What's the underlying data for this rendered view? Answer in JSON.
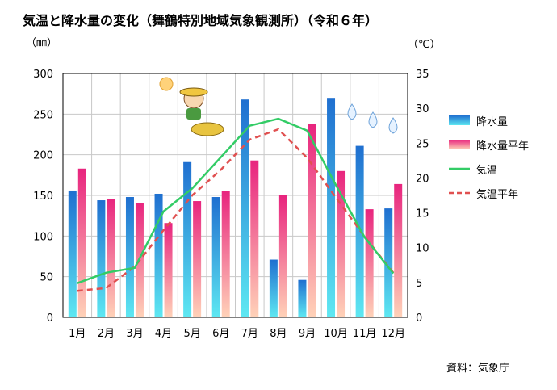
{
  "title": "気温と降水量の変化（舞鶴特別地域気象観測所）（令和６年）",
  "unit_left": "（㎜）",
  "unit_right": "（℃）",
  "source": "資料：気象庁",
  "colors": {
    "precip": "#1f6fd0",
    "precip_normal": "#e8247e",
    "temp": "#33cc66",
    "temp_normal": "#e05050",
    "grid": "#c8c8c8"
  },
  "chart_data": {
    "type": "bar",
    "categories": [
      "1月",
      "2月",
      "3月",
      "4月",
      "5月",
      "6月",
      "7月",
      "8月",
      "9月",
      "10月",
      "11月",
      "12月"
    ],
    "y_left": {
      "min": 0,
      "max": 300,
      "step": 50
    },
    "y_right": {
      "min": 0,
      "max": 35,
      "step": 5
    },
    "left_ticks": [
      "0",
      "50",
      "100",
      "150",
      "200",
      "250",
      "300"
    ],
    "right_ticks": [
      "0",
      "5",
      "10",
      "15",
      "20",
      "25",
      "30",
      "35"
    ],
    "legend_position": "right",
    "grid": true,
    "series": [
      {
        "name": "降水量",
        "kind": "bar",
        "axis": "left",
        "values": [
          156,
          144,
          148,
          152,
          191,
          148,
          268,
          71,
          46,
          270,
          211,
          134
        ]
      },
      {
        "name": "降水量平年",
        "kind": "bar",
        "axis": "left",
        "values": [
          183,
          146,
          141,
          116,
          143,
          155,
          193,
          150,
          238,
          180,
          133,
          164
        ]
      },
      {
        "name": "気温",
        "kind": "line",
        "axis": "right",
        "style": "solid",
        "values": [
          4.9,
          6.4,
          7.1,
          15.2,
          18.5,
          23.0,
          27.5,
          28.5,
          26.8,
          19.0,
          11.5,
          6.3
        ]
      },
      {
        "name": "気温平年",
        "kind": "line",
        "axis": "right",
        "style": "dashed",
        "values": [
          3.8,
          4.2,
          7.3,
          12.5,
          17.5,
          21.2,
          25.5,
          27.0,
          22.9,
          17.2,
          11.6,
          6.4
        ]
      }
    ]
  }
}
